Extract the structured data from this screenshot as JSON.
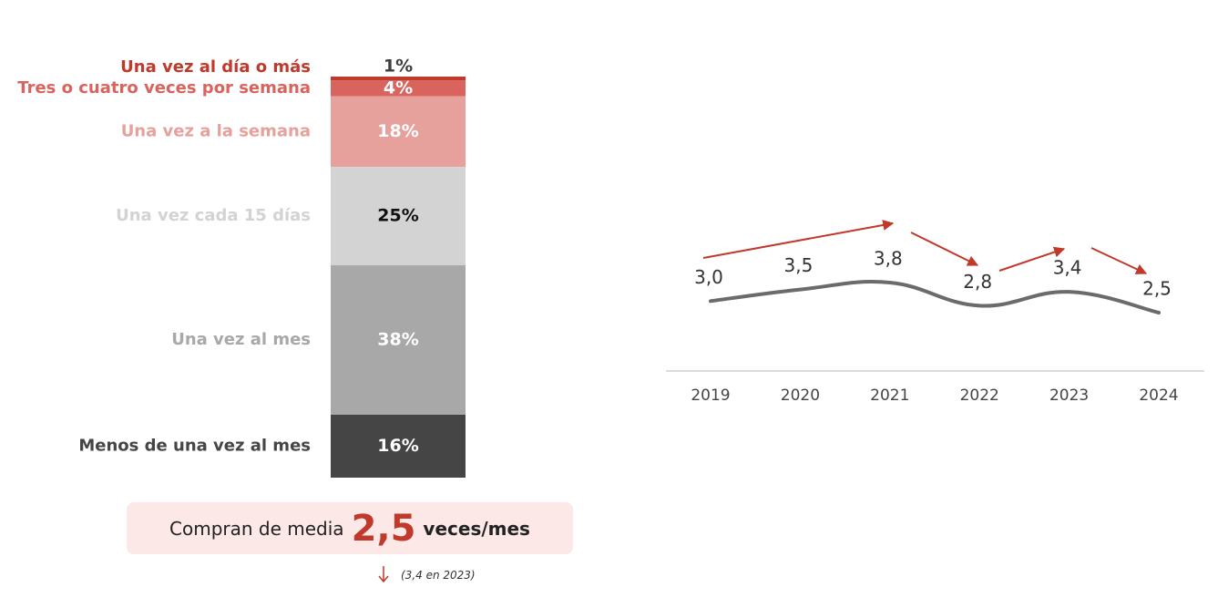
{
  "chart_data": [
    {
      "type": "stacked_bar",
      "categories": [
        null
      ],
      "series": [
        {
          "name": "Una vez al día o más",
          "color": "#c0392b",
          "label_color": "#3d3d3d",
          "values": [
            1
          ],
          "value_labels": [
            "1%"
          ]
        },
        {
          "name": "Tres o cuatro veces por semana",
          "color": "#d9645e",
          "label_color": "#ffffff",
          "values": [
            4
          ],
          "value_labels": [
            "4%"
          ]
        },
        {
          "name": "Una vez a la semana",
          "color": "#e6a19c",
          "label_color": "#ffffff",
          "values": [
            18
          ],
          "value_labels": [
            "18%"
          ]
        },
        {
          "name": "Una vez cada 15 días",
          "color": "#d3d3d3",
          "label_color": "#111111",
          "values": [
            25
          ],
          "value_labels": [
            "25%"
          ]
        },
        {
          "name": "Una vez al mes",
          "color": "#a8a8a8",
          "label_color": "#ffffff",
          "values": [
            38
          ],
          "value_labels": [
            "38%"
          ]
        },
        {
          "name": "Menos de una vez al mes",
          "color": "#454545",
          "label_color": "#ffffff",
          "values": [
            16
          ],
          "value_labels": [
            "16%"
          ]
        }
      ],
      "annotation": {
        "prefix": "Compran de media",
        "value": "2,5",
        "unit": "veces/mes",
        "note": "(3,4 en 2023)"
      }
    },
    {
      "type": "line",
      "categories": [
        "2019",
        "2020",
        "2021",
        "2022",
        "2023",
        "2024"
      ],
      "series": [
        {
          "color": "#6b6b6b",
          "values": [
            3.0,
            3.5,
            3.8,
            2.8,
            3.4,
            2.5
          ],
          "value_labels": [
            "3,0",
            "3,5",
            "3,8",
            "2,8",
            "3,4",
            "2,5"
          ]
        }
      ]
    }
  ]
}
